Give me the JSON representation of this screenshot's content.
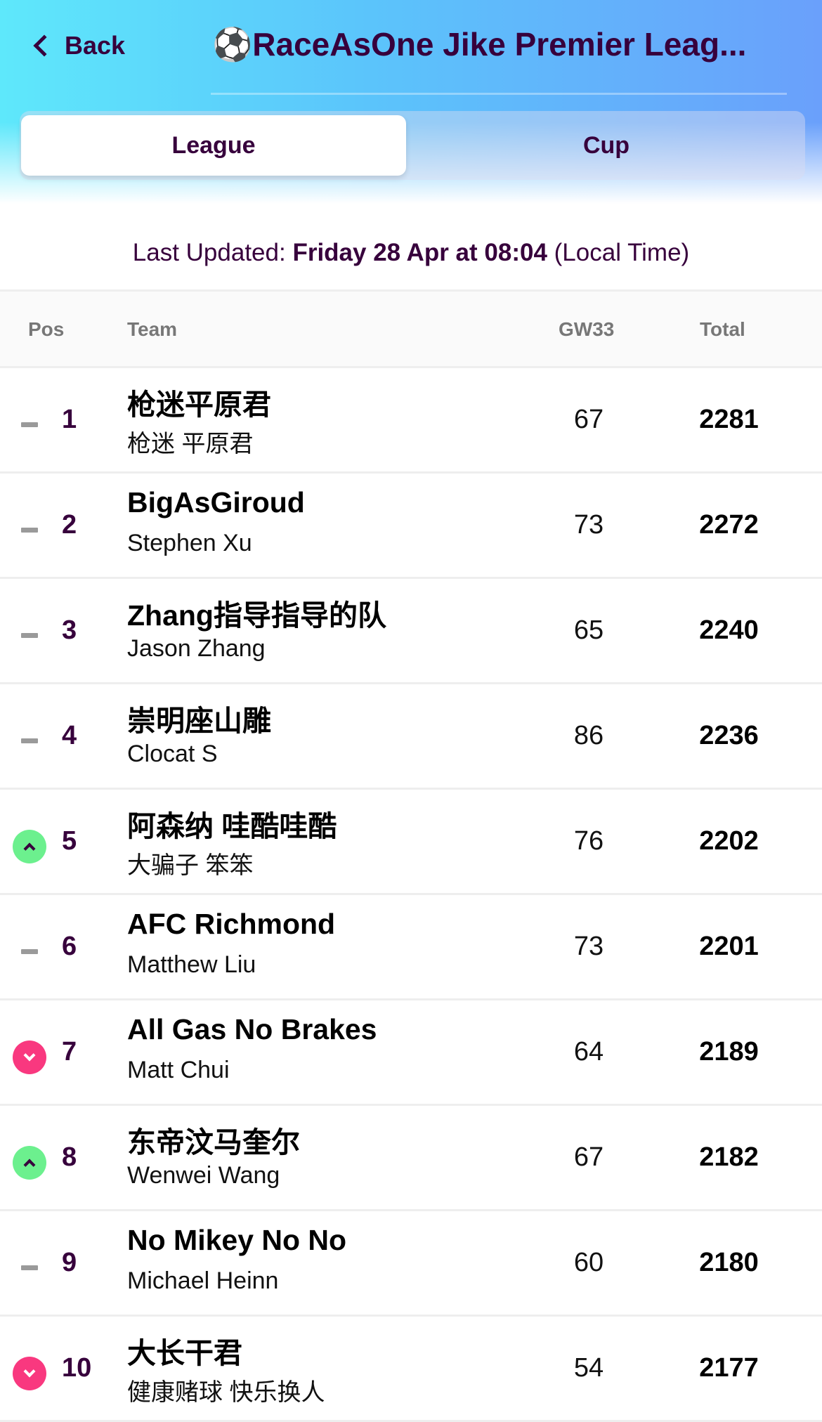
{
  "header": {
    "back_label": "Back",
    "title": "⚽RaceAsOne Jike Premier Leag..."
  },
  "tabs": [
    {
      "label": "League",
      "active": true
    },
    {
      "label": "Cup",
      "active": false
    }
  ],
  "last_updated": {
    "prefix": "Last Updated: ",
    "datetime": "Friday 28 Apr at 08:04",
    "suffix": " (Local Time)"
  },
  "table": {
    "columns": {
      "pos": "Pos",
      "team": "Team",
      "gw": "GW33",
      "total": "Total"
    },
    "rows": [
      {
        "movement": "same",
        "pos": "1",
        "team": "枪迷平原君",
        "manager": "枪迷 平原君",
        "gw": "67",
        "total": "2281"
      },
      {
        "movement": "same",
        "pos": "2",
        "team": "BigAsGiroud",
        "manager": "Stephen Xu",
        "gw": "73",
        "total": "2272"
      },
      {
        "movement": "same",
        "pos": "3",
        "team": "Zhang指导指导的队",
        "manager": "Jason Zhang",
        "gw": "65",
        "total": "2240"
      },
      {
        "movement": "same",
        "pos": "4",
        "team": "崇明座山雕",
        "manager": "Clocat S",
        "gw": "86",
        "total": "2236"
      },
      {
        "movement": "up",
        "pos": "5",
        "team": "阿森纳 哇酷哇酷",
        "manager": "大骗子 笨笨",
        "gw": "76",
        "total": "2202"
      },
      {
        "movement": "same",
        "pos": "6",
        "team": "AFC Richmond",
        "manager": "Matthew Liu",
        "gw": "73",
        "total": "2201"
      },
      {
        "movement": "down",
        "pos": "7",
        "team": "All Gas No Brakes",
        "manager": "Matt Chui",
        "gw": "64",
        "total": "2189"
      },
      {
        "movement": "up",
        "pos": "8",
        "team": "东帝汶马奎尔",
        "manager": "Wenwei Wang",
        "gw": "67",
        "total": "2182"
      },
      {
        "movement": "same",
        "pos": "9",
        "team": "No Mikey No No",
        "manager": "Michael Heinn",
        "gw": "60",
        "total": "2180"
      },
      {
        "movement": "down",
        "pos": "10",
        "team": "大长干君",
        "manager": "健康赌球 快乐换人",
        "gw": "54",
        "total": "2177"
      }
    ]
  },
  "colors": {
    "primary": "#37003c",
    "up": "#6cf08e",
    "down": "#f9387f",
    "same": "#9a9a9a"
  }
}
